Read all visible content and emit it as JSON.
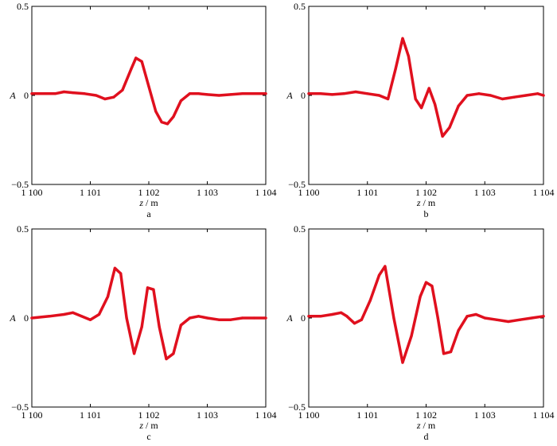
{
  "figure": {
    "line_color": "#e0101e",
    "frame_color": "#000000"
  },
  "chart_data": [
    {
      "type": "line",
      "panel_label": "a",
      "xlabel_var": "z",
      "xlabel_unit": " / m",
      "ylabel": "A",
      "xlim": [
        1100,
        1104
      ],
      "ylim": [
        -0.5,
        0.5
      ],
      "xticks": [
        1100,
        1101,
        1102,
        1103,
        1104
      ],
      "xtick_labels": [
        "1 100",
        "1 101",
        "1 102",
        "1 103",
        "1 104"
      ],
      "yticks": [
        -0.5,
        0,
        0.5
      ],
      "ytick_labels": [
        "−0.5",
        "0",
        "0.5"
      ],
      "grid": false,
      "x": [
        1100.0,
        1100.2,
        1100.4,
        1100.55,
        1100.7,
        1100.9,
        1101.1,
        1101.25,
        1101.4,
        1101.55,
        1101.7,
        1101.78,
        1101.88,
        1102.0,
        1102.12,
        1102.22,
        1102.32,
        1102.42,
        1102.55,
        1102.7,
        1102.85,
        1103.0,
        1103.2,
        1103.4,
        1103.6,
        1103.8,
        1104.0
      ],
      "y": [
        0.01,
        0.01,
        0.01,
        0.02,
        0.015,
        0.01,
        0.0,
        -0.02,
        -0.01,
        0.03,
        0.15,
        0.21,
        0.19,
        0.05,
        -0.09,
        -0.15,
        -0.16,
        -0.12,
        -0.03,
        0.01,
        0.01,
        0.005,
        0.0,
        0.005,
        0.01,
        0.01,
        0.01
      ]
    },
    {
      "type": "line",
      "panel_label": "b",
      "xlabel_var": "z",
      "xlabel_unit": " / m",
      "ylabel": "A",
      "xlim": [
        1100,
        1104
      ],
      "ylim": [
        -0.5,
        0.5
      ],
      "xticks": [
        1100,
        1101,
        1102,
        1103,
        1104
      ],
      "xtick_labels": [
        "1 100",
        "1 101",
        "1 102",
        "1 103",
        "1 104"
      ],
      "yticks": [
        -0.5,
        0,
        0.5
      ],
      "ytick_labels": [
        "−0.5",
        "0",
        "0.5"
      ],
      "grid": false,
      "x": [
        1100.0,
        1100.2,
        1100.4,
        1100.6,
        1100.8,
        1101.0,
        1101.2,
        1101.35,
        1101.48,
        1101.6,
        1101.7,
        1101.82,
        1101.92,
        1102.05,
        1102.15,
        1102.28,
        1102.4,
        1102.55,
        1102.7,
        1102.9,
        1103.1,
        1103.3,
        1103.5,
        1103.7,
        1103.9,
        1104.0
      ],
      "y": [
        0.01,
        0.01,
        0.005,
        0.01,
        0.02,
        0.01,
        0.0,
        -0.02,
        0.15,
        0.32,
        0.22,
        -0.02,
        -0.07,
        0.04,
        -0.05,
        -0.23,
        -0.18,
        -0.06,
        0.0,
        0.01,
        0.0,
        -0.02,
        -0.01,
        0.0,
        0.01,
        0.0
      ]
    },
    {
      "type": "line",
      "panel_label": "c",
      "xlabel_var": "z",
      "xlabel_unit": " / m",
      "ylabel": "A",
      "xlim": [
        1100,
        1104
      ],
      "ylim": [
        -0.5,
        0.5
      ],
      "xticks": [
        1100,
        1101,
        1102,
        1103,
        1104
      ],
      "xtick_labels": [
        "1 100",
        "1 101",
        "1 102",
        "1 103",
        "1 104"
      ],
      "yticks": [
        -0.5,
        0,
        0.5
      ],
      "ytick_labels": [
        "−0.5",
        "0",
        "0.5"
      ],
      "grid": false,
      "x": [
        1100.0,
        1100.3,
        1100.55,
        1100.7,
        1100.85,
        1101.0,
        1101.15,
        1101.3,
        1101.42,
        1101.52,
        1101.62,
        1101.75,
        1101.88,
        1101.98,
        1102.08,
        1102.18,
        1102.3,
        1102.42,
        1102.55,
        1102.7,
        1102.85,
        1103.0,
        1103.2,
        1103.4,
        1103.6,
        1103.8,
        1104.0
      ],
      "y": [
        0.0,
        0.01,
        0.02,
        0.03,
        0.01,
        -0.01,
        0.02,
        0.12,
        0.28,
        0.25,
        0.0,
        -0.2,
        -0.05,
        0.17,
        0.16,
        -0.05,
        -0.23,
        -0.2,
        -0.04,
        0.0,
        0.01,
        0.0,
        -0.01,
        -0.01,
        0.0,
        0.0,
        0.0
      ]
    },
    {
      "type": "line",
      "panel_label": "d",
      "xlabel_var": "z",
      "xlabel_unit": " / m",
      "ylabel": "A",
      "xlim": [
        1100,
        1104
      ],
      "ylim": [
        -0.5,
        0.5
      ],
      "xticks": [
        1100,
        1101,
        1102,
        1103,
        1104
      ],
      "xtick_labels": [
        "1 100",
        "1 101",
        "1 102",
        "1 103",
        "1 104"
      ],
      "yticks": [
        -0.5,
        0,
        0.5
      ],
      "ytick_labels": [
        "−0.5",
        "0",
        "0.5"
      ],
      "grid": false,
      "x": [
        1100.0,
        1100.2,
        1100.4,
        1100.55,
        1100.65,
        1100.78,
        1100.9,
        1101.05,
        1101.2,
        1101.3,
        1101.45,
        1101.6,
        1101.75,
        1101.9,
        1102.0,
        1102.1,
        1102.2,
        1102.3,
        1102.42,
        1102.55,
        1102.7,
        1102.85,
        1103.0,
        1103.2,
        1103.4,
        1103.6,
        1103.8,
        1104.0
      ],
      "y": [
        0.01,
        0.01,
        0.02,
        0.03,
        0.01,
        -0.03,
        -0.01,
        0.1,
        0.24,
        0.29,
        0.0,
        -0.25,
        -0.1,
        0.12,
        0.2,
        0.18,
        0.0,
        -0.2,
        -0.19,
        -0.07,
        0.01,
        0.02,
        0.0,
        -0.01,
        -0.02,
        -0.01,
        0.0,
        0.01
      ]
    }
  ]
}
